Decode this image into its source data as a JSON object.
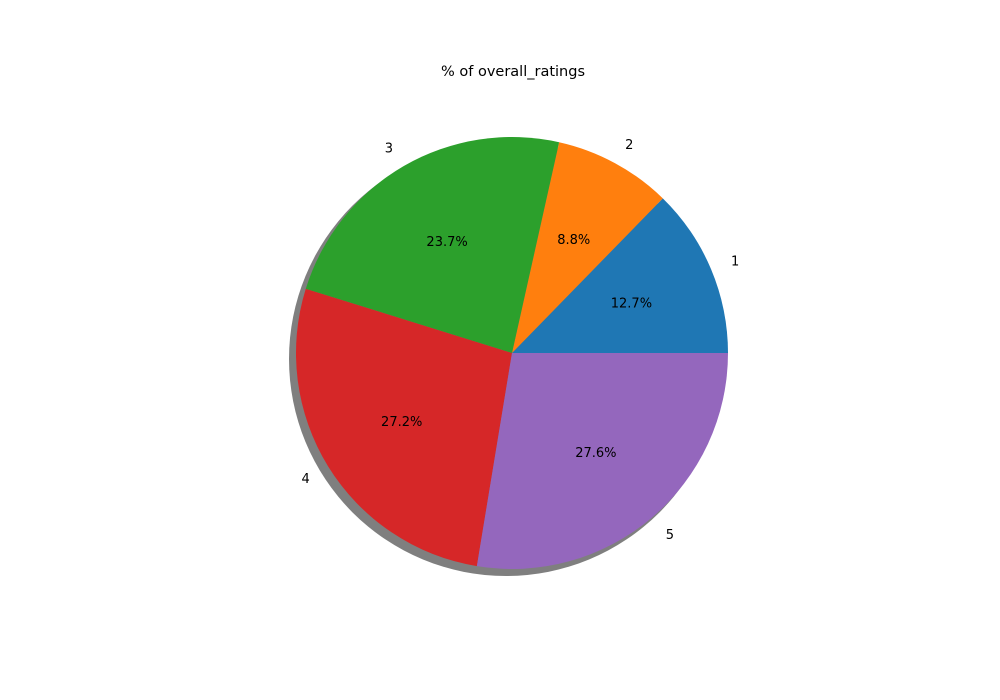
{
  "chart_data": {
    "type": "pie",
    "title": "% of overall_ratings",
    "categories": [
      "1",
      "2",
      "3",
      "4",
      "5"
    ],
    "values": [
      12.7,
      8.8,
      23.7,
      27.2,
      27.6
    ],
    "value_labels": [
      "12.7%",
      "8.8%",
      "23.7%",
      "27.2%",
      "27.6%"
    ],
    "colors": [
      "#1f77b4",
      "#ff7f0e",
      "#2ca02c",
      "#d62728",
      "#9467bd"
    ],
    "shadow": true,
    "start_angle_deg": 0,
    "direction": "counterclockwise",
    "legend": "none"
  }
}
